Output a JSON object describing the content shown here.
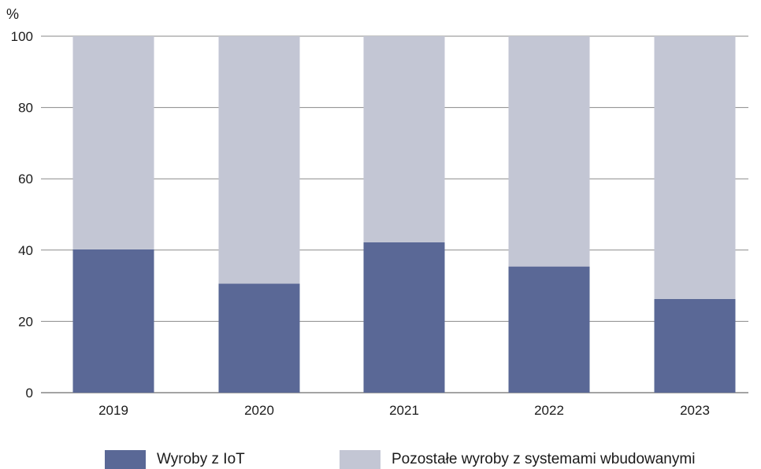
{
  "chart_data": {
    "type": "bar",
    "stacked": true,
    "title": "",
    "ylabel": "%",
    "xlabel": "",
    "categories": [
      "2019",
      "2020",
      "2021",
      "2022",
      "2023"
    ],
    "ylim": [
      0,
      100
    ],
    "yticks": [
      0,
      20,
      40,
      60,
      80,
      100
    ],
    "grid": true,
    "legend_position": "bottom",
    "series": [
      {
        "name": "Wyroby z IoT",
        "color": "#5a6896",
        "values": [
          40.2,
          30.6,
          42.2,
          35.4,
          26.3
        ]
      },
      {
        "name": "Pozostałe wyroby z systemami wbudowanymi",
        "color": "#c3c6d4",
        "values": [
          59.8,
          69.4,
          57.8,
          64.6,
          73.7
        ]
      }
    ]
  }
}
